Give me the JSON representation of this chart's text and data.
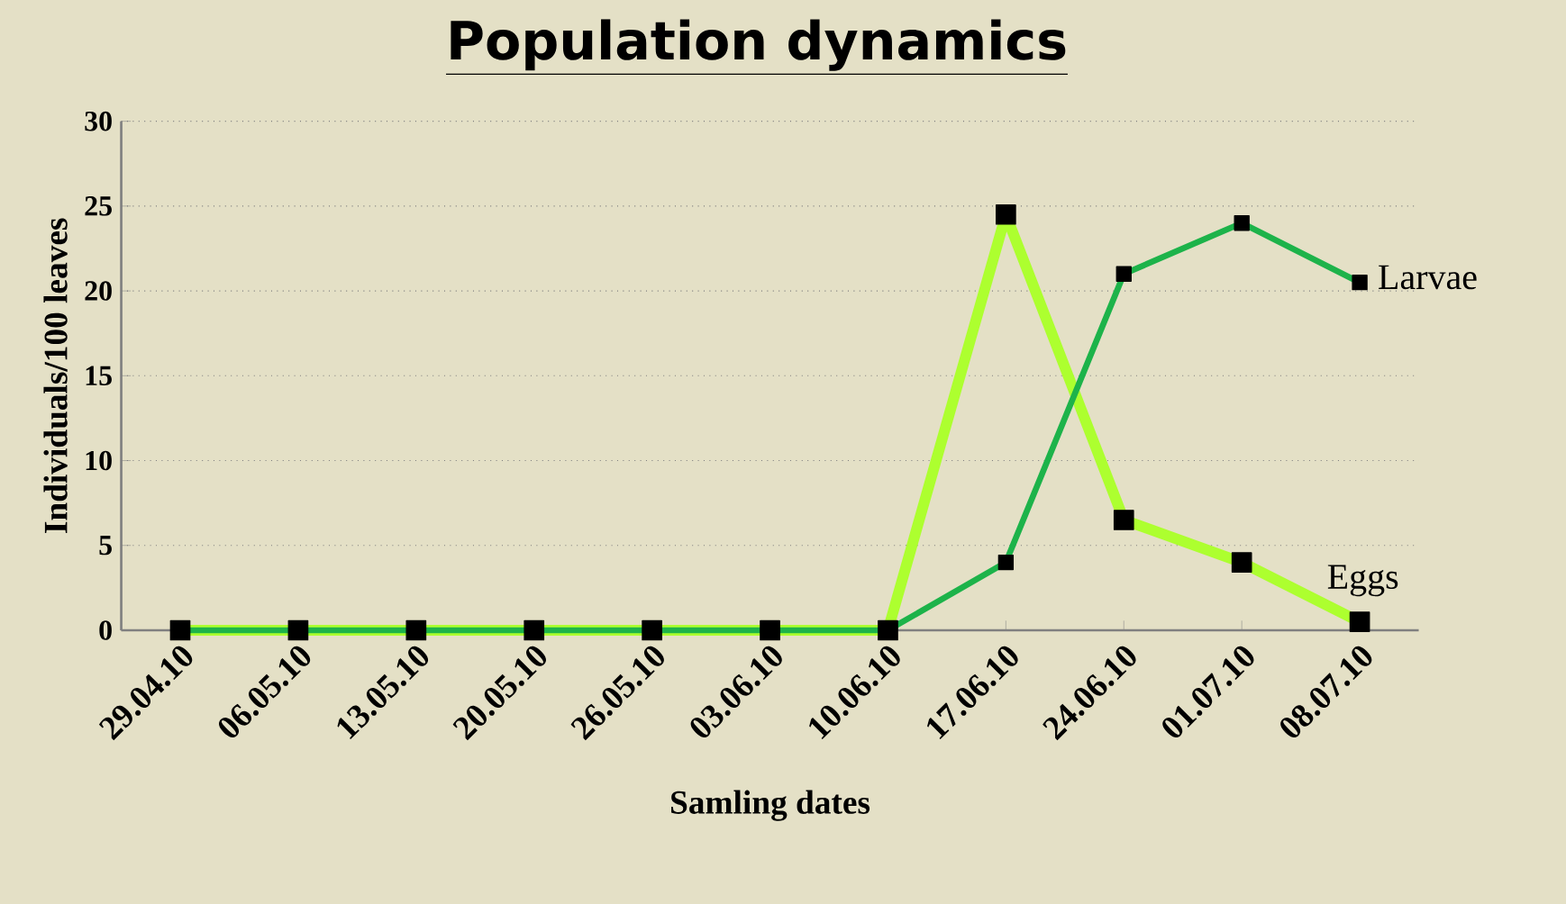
{
  "chart_data": {
    "type": "line",
    "title": "Population dynamics",
    "xlabel": "Samling dates",
    "ylabel": "Individuals/100 leaves",
    "categories": [
      "29.04.10",
      "06.05.10",
      "13.05.10",
      "20.05.10",
      "26.05.10",
      "03.06.10",
      "10.06.10",
      "17.06.10",
      "24.06.10",
      "01.07.10",
      "08.07.10"
    ],
    "series": [
      {
        "name": "Eggs",
        "color": "#adff2f",
        "values": [
          0,
          0,
          0,
          0,
          0,
          0,
          0,
          24.5,
          6.5,
          4,
          0.5
        ]
      },
      {
        "name": "Larvae",
        "color": "#1db34a",
        "values": [
          0,
          0,
          0,
          0,
          0,
          0,
          0,
          4,
          21,
          24,
          20.5
        ]
      }
    ],
    "ylim": [
      0,
      30
    ],
    "yticks": [
      0,
      5,
      10,
      15,
      20,
      25,
      30
    ],
    "grid": "y",
    "marker": "square"
  }
}
